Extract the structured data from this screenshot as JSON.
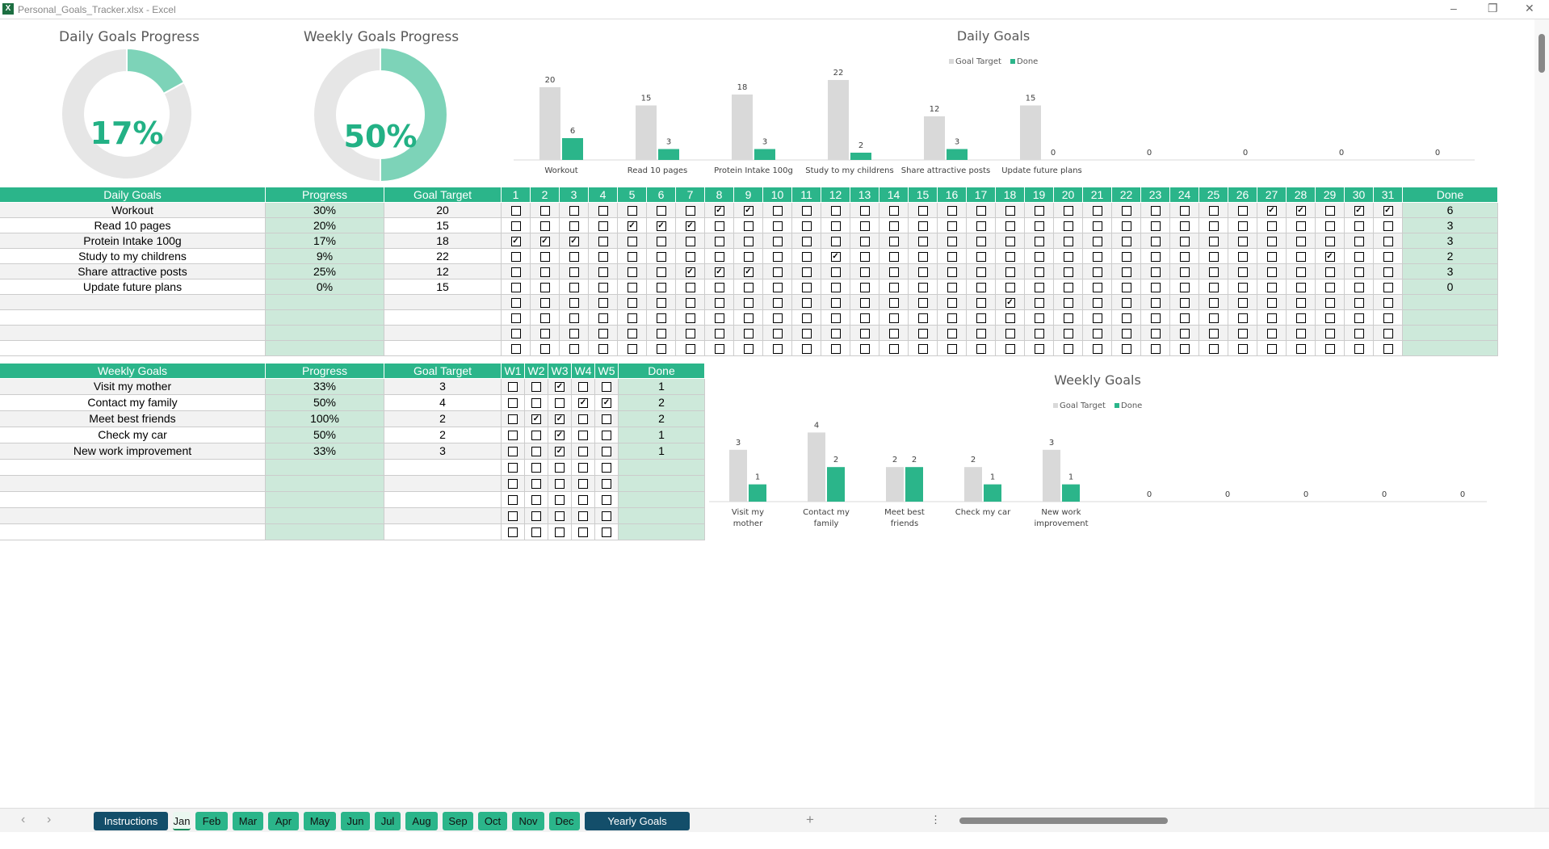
{
  "window": {
    "title": "Personal_Goals_Tracker.xlsx - Excel",
    "minimize": "–",
    "restore": "❐",
    "close": "✕"
  },
  "donuts": {
    "daily": {
      "title": "Daily Goals Progress",
      "label": "17%",
      "value": 0.17
    },
    "weekly": {
      "title": "Weekly Goals Progress",
      "label": "50%",
      "value": 0.5
    }
  },
  "colors": {
    "header": "#2bb58a",
    "progress_fill": "#cde9da",
    "donut": "#7dd3b8",
    "target_bar": "#d9d9d9",
    "done_bar": "#2bb58a",
    "dark_tab": "#134e6a"
  },
  "daily_table": {
    "headers": {
      "goal": "Daily Goals",
      "progress": "Progress",
      "target": "Goal Target",
      "done": "Done"
    },
    "days": [
      "1",
      "2",
      "3",
      "4",
      "5",
      "6",
      "7",
      "8",
      "9",
      "10",
      "11",
      "12",
      "13",
      "14",
      "15",
      "16",
      "17",
      "18",
      "19",
      "20",
      "21",
      "22",
      "23",
      "24",
      "25",
      "26",
      "27",
      "28",
      "29",
      "30",
      "31"
    ],
    "rows": [
      {
        "goal": "Workout",
        "progress": "30%",
        "target": "20",
        "done": "6",
        "checked": [
          8,
          9,
          27,
          28,
          30,
          31
        ]
      },
      {
        "goal": "Read 10 pages",
        "progress": "20%",
        "target": "15",
        "done": "3",
        "checked": [
          5,
          6,
          7
        ]
      },
      {
        "goal": "Protein Intake 100g",
        "progress": "17%",
        "target": "18",
        "done": "3",
        "checked": [
          1,
          2,
          3
        ]
      },
      {
        "goal": "Study to my childrens",
        "progress": "9%",
        "target": "22",
        "done": "2",
        "checked": [
          12,
          29
        ]
      },
      {
        "goal": "Share attractive posts",
        "progress": "25%",
        "target": "12",
        "done": "3",
        "checked": [
          7,
          8,
          9
        ]
      },
      {
        "goal": "Update future plans",
        "progress": "0%",
        "target": "15",
        "done": "0",
        "checked": []
      },
      {
        "goal": "",
        "progress": "",
        "target": "",
        "done": "",
        "checked": [
          18
        ]
      },
      {
        "goal": "",
        "progress": "",
        "target": "",
        "done": "",
        "checked": []
      },
      {
        "goal": "",
        "progress": "",
        "target": "",
        "done": "",
        "checked": []
      },
      {
        "goal": "",
        "progress": "",
        "target": "",
        "done": "",
        "checked": []
      }
    ]
  },
  "weekly_table": {
    "headers": {
      "goal": "Weekly Goals",
      "progress": "Progress",
      "target": "Goal Target",
      "done": "Done"
    },
    "weeks": [
      "W1",
      "W2",
      "W3",
      "W4",
      "W5"
    ],
    "rows": [
      {
        "goal": "Visit my mother",
        "progress": "33%",
        "target": "3",
        "done": "1",
        "checked": [
          3
        ]
      },
      {
        "goal": "Contact my family",
        "progress": "50%",
        "target": "4",
        "done": "2",
        "checked": [
          4,
          5
        ]
      },
      {
        "goal": "Meet best friends",
        "progress": "100%",
        "target": "2",
        "done": "2",
        "checked": [
          2,
          3
        ]
      },
      {
        "goal": "Check my car",
        "progress": "50%",
        "target": "2",
        "done": "1",
        "checked": [
          3
        ]
      },
      {
        "goal": "New work improvement",
        "progress": "33%",
        "target": "3",
        "done": "1",
        "checked": [
          3
        ]
      },
      {
        "goal": "",
        "progress": "",
        "target": "",
        "done": "",
        "checked": []
      },
      {
        "goal": "",
        "progress": "",
        "target": "",
        "done": "",
        "checked": []
      },
      {
        "goal": "",
        "progress": "",
        "target": "",
        "done": "",
        "checked": []
      },
      {
        "goal": "",
        "progress": "",
        "target": "",
        "done": "",
        "checked": []
      },
      {
        "goal": "",
        "progress": "",
        "target": "",
        "done": "",
        "checked": []
      }
    ]
  },
  "chart_data": [
    {
      "type": "bar",
      "title": "Daily Goals",
      "legend": "top",
      "grid": false,
      "categories": [
        "Workout",
        "Read 10 pages",
        "Protein Intake 100g",
        "Study to my childrens",
        "Share attractive posts",
        "Update future plans",
        "",
        "",
        "",
        ""
      ],
      "series": [
        {
          "name": "Goal Target",
          "values": [
            20,
            15,
            18,
            22,
            12,
            15,
            null,
            null,
            null,
            null
          ]
        },
        {
          "name": "Done",
          "values": [
            6,
            3,
            3,
            2,
            3,
            0,
            0,
            0,
            0,
            0
          ]
        }
      ]
    },
    {
      "type": "bar",
      "title": "Weekly Goals",
      "legend": "top",
      "grid": false,
      "categories": [
        "Visit my mother",
        "Contact my family",
        "Meet best friends",
        "Check my car",
        "New work improvement",
        "",
        "",
        "",
        "",
        ""
      ],
      "series": [
        {
          "name": "Goal Target",
          "values": [
            3,
            4,
            2,
            2,
            3,
            null,
            null,
            null,
            null,
            null
          ]
        },
        {
          "name": "Done",
          "values": [
            1,
            2,
            2,
            1,
            1,
            0,
            0,
            0,
            0,
            0
          ]
        }
      ]
    }
  ],
  "sheet_tabs": {
    "prev": "‹",
    "next": "›",
    "add": "+",
    "more": "⋮",
    "tabs": [
      {
        "label": "Instructions",
        "style": "dark"
      },
      {
        "label": "Jan",
        "style": "active"
      },
      {
        "label": "Feb"
      },
      {
        "label": "Mar"
      },
      {
        "label": "Apr"
      },
      {
        "label": "May"
      },
      {
        "label": "Jun"
      },
      {
        "label": "Jul"
      },
      {
        "label": "Aug"
      },
      {
        "label": "Sep"
      },
      {
        "label": "Oct"
      },
      {
        "label": "Nov"
      },
      {
        "label": "Dec"
      },
      {
        "label": "Yearly Goals Summary",
        "style": "dark"
      }
    ]
  }
}
